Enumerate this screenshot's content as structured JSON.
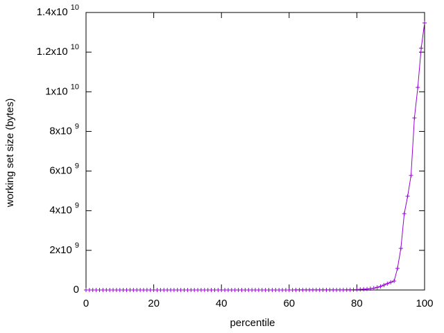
{
  "chart_data": {
    "type": "line",
    "xlabel": "percentile",
    "ylabel": "working set size (bytes)",
    "x": [
      0,
      1,
      2,
      3,
      4,
      5,
      6,
      7,
      8,
      9,
      10,
      11,
      12,
      13,
      14,
      15,
      16,
      17,
      18,
      19,
      20,
      21,
      22,
      23,
      24,
      25,
      26,
      27,
      28,
      29,
      30,
      31,
      32,
      33,
      34,
      35,
      36,
      37,
      38,
      39,
      40,
      41,
      42,
      43,
      44,
      45,
      46,
      47,
      48,
      49,
      50,
      51,
      52,
      53,
      54,
      55,
      56,
      57,
      58,
      59,
      60,
      61,
      62,
      63,
      64,
      65,
      66,
      67,
      68,
      69,
      70,
      71,
      72,
      73,
      74,
      75,
      76,
      77,
      78,
      79,
      80,
      81,
      82,
      83,
      84,
      85,
      86,
      87,
      88,
      89,
      90,
      91,
      92,
      93,
      94,
      95,
      96,
      97,
      98,
      99,
      100
    ],
    "series": [
      {
        "color": "#9400d3",
        "values": [
          100000,
          120000,
          140000,
          160000,
          180000,
          200000,
          220000,
          240000,
          260000,
          280000,
          300000,
          320000,
          340000,
          360000,
          380000,
          400000,
          420000,
          440000,
          460000,
          480000,
          500000,
          520000,
          540000,
          560000,
          580000,
          600000,
          620000,
          640000,
          660000,
          680000,
          700000,
          720000,
          740000,
          760000,
          780000,
          800000,
          820000,
          840000,
          860000,
          880000,
          900000,
          920000,
          940000,
          960000,
          980000,
          1000000,
          1050000,
          1100000,
          1150000,
          1200000,
          1250000,
          1300000,
          1350000,
          1400000,
          1450000,
          1500000,
          1600000,
          1700000,
          1800000,
          1900000,
          2000000,
          2100000,
          2200000,
          2300000,
          2400000,
          2500000,
          2600000,
          2700000,
          2800000,
          2900000,
          3000000,
          3200000,
          3400000,
          3600000,
          3800000,
          4000000,
          5000000,
          7000000,
          10000000,
          15000000,
          20000000,
          30000000,
          40000000,
          50000000,
          70000000,
          90000000,
          130000000,
          180000000,
          250000000,
          320000000,
          390000000,
          450000000,
          1090000000,
          2100000000,
          3850000000,
          4730000000,
          5780000000,
          8680000000,
          10220000000,
          12200000000,
          13475000000
        ]
      }
    ],
    "xlim": [
      0,
      100
    ],
    "xticks": [
      0,
      20,
      40,
      60,
      80,
      100
    ],
    "ylim": [
      0,
      14000000000
    ],
    "yticks": [
      0,
      {
        "value": 2000000000,
        "label": "2x10",
        "sup": "9"
      },
      {
        "value": 4000000000,
        "label": "4x10",
        "sup": "9"
      },
      {
        "value": 6000000000,
        "label": "6x10",
        "sup": "9"
      },
      {
        "value": 8000000000,
        "label": "8x10",
        "sup": "9"
      },
      {
        "value": 10000000000,
        "label": "1x10",
        "sup": "10"
      },
      {
        "value": 12000000000,
        "label": "1.2x10",
        "sup": "10"
      },
      {
        "value": 14000000000,
        "label": "1.4x10",
        "sup": "10"
      }
    ],
    "grid": false
  }
}
